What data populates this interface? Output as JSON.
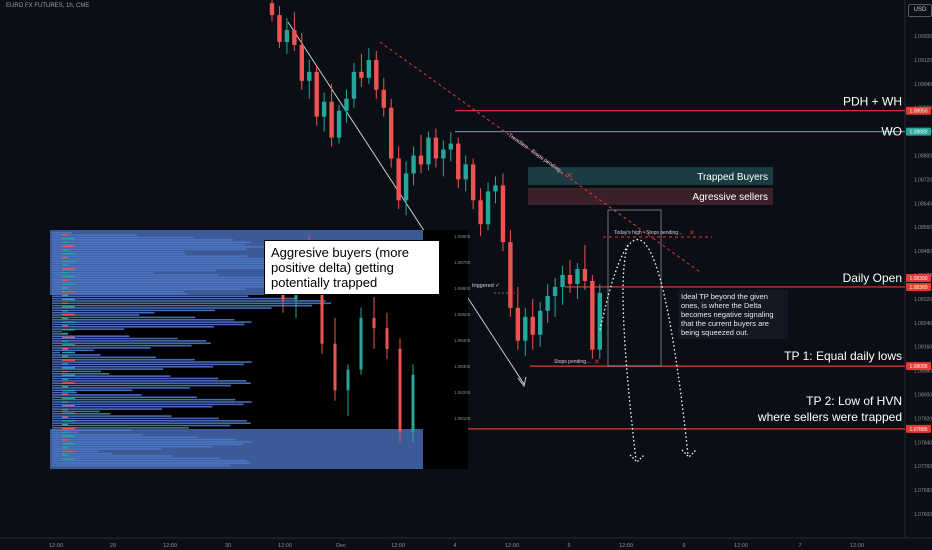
{
  "header": {
    "symbol": "EURO FX FUTURES, 1h, CME",
    "currency_button": "USD"
  },
  "colors": {
    "bull": "#26a69a",
    "bear": "#ef5350",
    "level_red": "#e53935",
    "teal": "#26a69a",
    "panel_dark": "#000000",
    "profile_blue": "#4f78c9",
    "zone_teal": "#1a3d44",
    "zone_red": "#3a2028"
  },
  "annotations": {
    "pdh_wh": "PDH + WH",
    "wo": "WO",
    "trapped_buyers": "Trapped Buyers",
    "aggressive_sellers": "Agressive sellers",
    "daily_open": "Daily Open",
    "tp1": "TP 1: Equal daily lows",
    "tp2_line1": "TP 2: Low of HVN",
    "tp2_line2": "where sellers were trapped",
    "trendline": "Trendline - Stops pending...",
    "todays_high": "Today's high - Stops pending...",
    "stops_pending": "Stops pending...",
    "triggered": "triggered ✓",
    "inset_note": "Aggresive buyers (more positive delta) getting potentially trapped",
    "ideal_tp": "Ideal TP beyond the given ones, is where the Delta becomes negative signaling that the current buyers are being squeezed out."
  },
  "chart_data": {
    "type": "candlestick",
    "title": "",
    "y_axis_ticks": [
      "1.09200",
      "1.09120",
      "1.09040",
      "1.08960",
      "1.08880",
      "1.08800",
      "1.08720",
      "1.08640",
      "1.08560",
      "1.08480",
      "1.08400",
      "1.08320",
      "1.08240",
      "1.08160",
      "1.08080",
      "1.08000",
      "1.07920",
      "1.07840",
      "1.07760",
      "1.07680",
      "1.07600"
    ],
    "x_axis_ticks": [
      "12:00",
      "29",
      "12:00",
      "30",
      "12:00",
      "Dec",
      "12:00",
      "4",
      "12:00",
      "5",
      "12:00",
      "6",
      "12:00",
      "7",
      "12:00"
    ],
    "price_tags": [
      {
        "label": "1.08950",
        "price": 1.0895,
        "color": "#e53935"
      },
      {
        "label": "1.08880",
        "price": 1.0888,
        "color": "#26a69a"
      },
      {
        "label": "1.08390",
        "price": 1.0839,
        "color": "#e53935"
      },
      {
        "label": "1.08360",
        "price": 1.0836,
        "color": "#e53935"
      },
      {
        "label": "1.08095",
        "price": 1.08095,
        "color": "#e53935"
      },
      {
        "label": "1.07885",
        "price": 1.07885,
        "color": "#e53935"
      }
    ],
    "levels": [
      {
        "name": "PDH + WH",
        "price": 1.0895,
        "color": "#e53935"
      },
      {
        "name": "WO",
        "price": 1.0888,
        "color": "#26a69a"
      },
      {
        "name": "Daily Open",
        "price": 1.0836,
        "color": "#e53935"
      },
      {
        "name": "TP 1",
        "price": 1.08095,
        "color": "#e53935"
      },
      {
        "name": "TP 2",
        "price": 1.07885,
        "color": "#e53935"
      }
    ],
    "candles": [
      [
        1.0931,
        1.0936,
        1.0925,
        1.0927
      ],
      [
        1.0927,
        1.093,
        1.0916,
        1.0918
      ],
      [
        1.0918,
        1.0926,
        1.0914,
        1.0922
      ],
      [
        1.0922,
        1.0928,
        1.0915,
        1.0917
      ],
      [
        1.0917,
        1.0921,
        1.0902,
        1.0905
      ],
      [
        1.0905,
        1.0912,
        1.0899,
        1.0908
      ],
      [
        1.0908,
        1.091,
        1.089,
        1.0893
      ],
      [
        1.0893,
        1.0901,
        1.0888,
        1.0898
      ],
      [
        1.0898,
        1.0904,
        1.0883,
        1.0886
      ],
      [
        1.0886,
        1.0897,
        1.0884,
        1.0895
      ],
      [
        1.0895,
        1.0902,
        1.0891,
        1.0899
      ],
      [
        1.0899,
        1.0911,
        1.0896,
        1.0908
      ],
      [
        1.0908,
        1.0914,
        1.0903,
        1.0906
      ],
      [
        1.0906,
        1.0916,
        1.0904,
        1.0912
      ],
      [
        1.0912,
        1.0915,
        1.0899,
        1.0902
      ],
      [
        1.0902,
        1.0906,
        1.0893,
        1.0896
      ],
      [
        1.0896,
        1.0899,
        1.0876,
        1.0879
      ],
      [
        1.0879,
        1.0883,
        1.0862,
        1.0865
      ],
      [
        1.0865,
        1.0878,
        1.086,
        1.0874
      ],
      [
        1.0874,
        1.0883,
        1.087,
        1.088
      ],
      [
        1.088,
        1.0887,
        1.0874,
        1.0877
      ],
      [
        1.0877,
        1.0888,
        1.0875,
        1.0886
      ],
      [
        1.0886,
        1.0889,
        1.0876,
        1.0879
      ],
      [
        1.0879,
        1.0885,
        1.0873,
        1.0882
      ],
      [
        1.0882,
        1.0888,
        1.0878,
        1.0884
      ],
      [
        1.0884,
        1.0886,
        1.0869,
        1.0872
      ],
      [
        1.0872,
        1.088,
        1.0868,
        1.0877
      ],
      [
        1.0877,
        1.0879,
        1.0862,
        1.0865
      ],
      [
        1.0865,
        1.0869,
        1.0853,
        1.0857
      ],
      [
        1.0857,
        1.0871,
        1.0855,
        1.0868
      ],
      [
        1.0868,
        1.0873,
        1.0864,
        1.087
      ],
      [
        1.087,
        1.0874,
        1.0848,
        1.0851
      ],
      [
        1.0851,
        1.0855,
        1.0826,
        1.0829
      ],
      [
        1.0829,
        1.0836,
        1.0815,
        1.0818
      ],
      [
        1.0818,
        1.0829,
        1.0813,
        1.0826
      ],
      [
        1.0826,
        1.0832,
        1.0815,
        1.082
      ],
      [
        1.082,
        1.0831,
        1.0816,
        1.0828
      ],
      [
        1.0828,
        1.0837,
        1.0824,
        1.0833
      ],
      [
        1.0833,
        1.0839,
        1.0826,
        1.0836
      ],
      [
        1.0836,
        1.0843,
        1.083,
        1.084
      ],
      [
        1.084,
        1.0845,
        1.0834,
        1.0837
      ],
      [
        1.0837,
        1.0844,
        1.0832,
        1.0842
      ],
      [
        1.0842,
        1.085,
        1.0835,
        1.0838
      ],
      [
        1.0838,
        1.084,
        1.0812,
        1.0815
      ],
      [
        1.0815,
        1.0837,
        1.0812,
        1.0834
      ]
    ]
  }
}
